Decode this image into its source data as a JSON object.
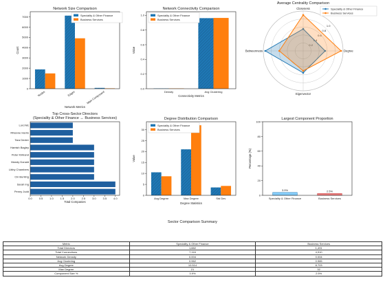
{
  "colors": {
    "spec": "#1f77b4",
    "biz": "#ff7f0e"
  },
  "legend": [
    "Speciality & Other Finance",
    "Business Services"
  ],
  "chart_data": [
    {
      "id": "size",
      "type": "bar",
      "title": "Network Size Comparison",
      "xlabel": "Network Metrics",
      "ylabel": "Count",
      "categories": [
        "Nodes",
        "Edges",
        "Main Component"
      ],
      "series": [
        {
          "name": "Speciality & Other Finance",
          "values": [
            1882,
            7116,
            80
          ]
        },
        {
          "name": "Business Services",
          "values": [
            1491,
            4910,
            38
          ]
        }
      ],
      "ylim": [
        0,
        7500
      ],
      "yticks": [
        0,
        1000,
        2000,
        3000,
        4000,
        5000,
        6000,
        7000
      ],
      "legend_position": "upper-right"
    },
    {
      "id": "conn",
      "type": "bar",
      "title": "Network Connectivity Comparison",
      "xlabel": "Connectivity Metrics",
      "ylabel": "Value",
      "categories": [
        "Density",
        "Avg Clustering"
      ],
      "series": [
        {
          "name": "Speciality & Other Finance",
          "values": [
            0.004,
            0.962
          ]
        },
        {
          "name": "Business Services",
          "values": [
            0.004,
            0.965
          ]
        }
      ],
      "ylim": [
        0,
        1.05
      ],
      "yticks": [
        "0.0",
        "0.2",
        "0.4",
        "0.6",
        "0.8",
        "1.0"
      ],
      "legend_position": "upper-left"
    },
    {
      "id": "radar",
      "type": "radar",
      "title": "Average Centrality Comparison",
      "axes": [
        "Closeness",
        "Degree",
        "Eigenvector",
        "Betweenness"
      ],
      "rticks": [
        "0.2",
        "0.4",
        "0.6",
        "0.8",
        "1.0"
      ],
      "series": [
        {
          "name": "Speciality & Other Finance",
          "values": [
            0.55,
            0.55,
            0.55,
            0.95
          ]
        },
        {
          "name": "Business Services",
          "values": [
            0.9,
            0.95,
            0.5,
            0.6
          ]
        }
      ],
      "legend_position": "upper-right"
    },
    {
      "id": "dirs",
      "type": "bar-horizontal",
      "title": "Top Cross-Sector Directors",
      "subtitle": "(Speciality & Other Finance ↔ Business Services)",
      "xlabel": "Total Companies",
      "categories": [
        "Penny Judd",
        "Sarah Ing",
        "Cin Bunting",
        "Libby Chambers",
        "Mandy Donald",
        "Peter Kirkland",
        "Hamish Bagley",
        "Tara Dexter",
        "Rhianne Harris",
        "Lord Mc"
      ],
      "values": [
        4,
        4,
        3,
        3,
        3,
        3,
        3,
        2,
        2,
        2
      ],
      "xlim": [
        0,
        4.2
      ],
      "xticks": [
        "0.0",
        "0.5",
        "1.0",
        "1.5",
        "2.0",
        "2.5",
        "3.0",
        "3.5",
        "4.0"
      ]
    },
    {
      "id": "deg",
      "type": "bar",
      "title": "Degree Distribution Comparison",
      "xlabel": "Degree Statistics",
      "ylabel": "Value",
      "categories": [
        "Avg Degree",
        "Max Degree",
        "Std Dev"
      ],
      "series": [
        {
          "name": "Speciality & Other Finance",
          "values": [
            10.514,
            21,
            3.6
          ]
        },
        {
          "name": "Business Services",
          "values": [
            8.703,
            32,
            4.3
          ]
        }
      ],
      "ylim": [
        0,
        33.6
      ],
      "yticks": [
        0,
        5,
        10,
        15,
        20,
        25,
        30
      ],
      "legend_position": "upper-left"
    },
    {
      "id": "comp",
      "type": "bar",
      "title": "Largest Component Proportion",
      "ylabel": "Percentage (%)",
      "categories": [
        "Speciality & Other Finance",
        "Business Services"
      ],
      "values": [
        3.9,
        2.5
      ],
      "data_labels": [
        "3.9%",
        "2.5%"
      ],
      "ylim": [
        0,
        100
      ],
      "yticks": [
        0,
        20,
        40,
        60,
        80,
        100
      ],
      "colors": [
        "#87cefa",
        "#f08080"
      ]
    }
  ],
  "summary": {
    "title": "Sector Comparison Summary",
    "columns": [
      "Metric",
      "Speciality & Other Finance",
      "Business Services"
    ],
    "rows": [
      [
        "Total Directors",
        "1,882",
        "1,491"
      ],
      [
        "Total Connections",
        "7,116",
        "4,910"
      ],
      [
        "Network Density",
        "0.004",
        "0.004"
      ],
      [
        "Avg Clustering",
        "0.962",
        "0.965"
      ],
      [
        "Avg Degree",
        "10.514",
        "8.703"
      ],
      [
        "Max Degree",
        "21",
        "32"
      ],
      [
        "Component Size %",
        "3.9%",
        "2.5%"
      ]
    ]
  }
}
